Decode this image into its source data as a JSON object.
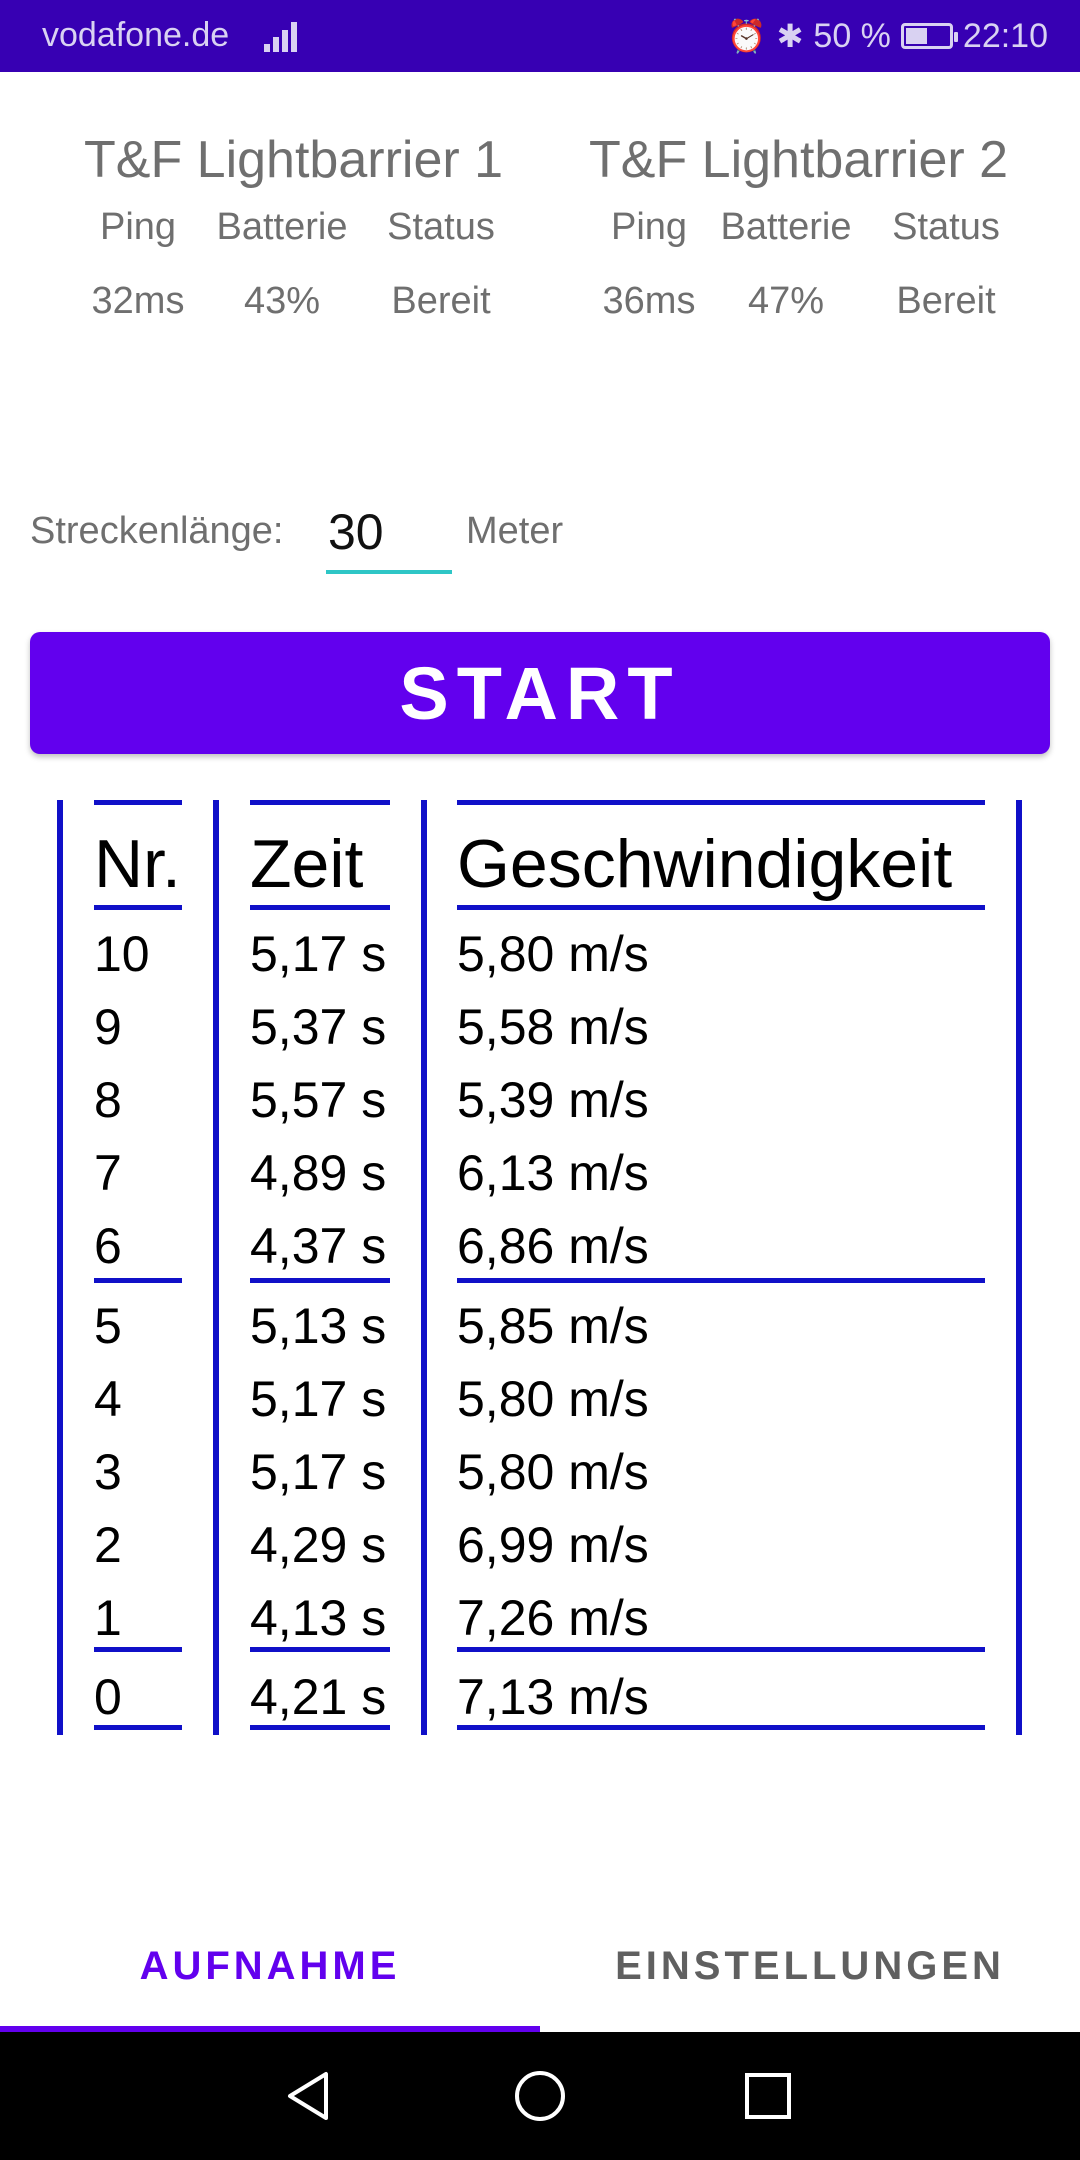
{
  "status_bar": {
    "carrier": "vodafone.de",
    "battery_text": "50 %",
    "battery_level": 0.5,
    "time": "22:10",
    "icons": [
      "signal-icon",
      "alarm-icon",
      "bluetooth-icon",
      "battery-icon"
    ]
  },
  "devices": [
    {
      "name": "T&F Lightbarrier 1",
      "labels": {
        "ping": "Ping",
        "battery": "Batterie",
        "status": "Status"
      },
      "values": {
        "ping": "32ms",
        "battery": "43%",
        "status": "Bereit"
      }
    },
    {
      "name": "T&F Lightbarrier 2",
      "labels": {
        "ping": "Ping",
        "battery": "Batterie",
        "status": "Status"
      },
      "values": {
        "ping": "36ms",
        "battery": "47%",
        "status": "Bereit"
      }
    }
  ],
  "distance": {
    "label": "Streckenlänge:",
    "value": "30",
    "unit": "Meter"
  },
  "start_button": {
    "label": "START"
  },
  "results": {
    "headers": {
      "nr": "Nr.",
      "time": "Zeit",
      "speed": "Geschwindigkeit"
    },
    "rows": [
      {
        "nr": "10",
        "time": "5,17 s",
        "speed": "5,80 m/s"
      },
      {
        "nr": "9",
        "time": "5,37 s",
        "speed": "5,58 m/s"
      },
      {
        "nr": "8",
        "time": "5,57 s",
        "speed": "5,39 m/s"
      },
      {
        "nr": "7",
        "time": "4,89 s",
        "speed": "6,13 m/s"
      },
      {
        "nr": "6",
        "time": "4,37 s",
        "speed": "6,86 m/s"
      },
      {
        "nr": "5",
        "time": "5,13 s",
        "speed": "5,85 m/s"
      },
      {
        "nr": "4",
        "time": "5,17 s",
        "speed": "5,80 m/s"
      },
      {
        "nr": "3",
        "time": "5,17 s",
        "speed": "5,80 m/s"
      },
      {
        "nr": "2",
        "time": "4,29 s",
        "speed": "6,99 m/s"
      },
      {
        "nr": "1",
        "time": "4,13 s",
        "speed": "7,26 m/s"
      },
      {
        "nr": "0",
        "time": "4,21 s",
        "speed": "7,13 m/s"
      }
    ]
  },
  "tabs": [
    {
      "label": "AUFNAHME",
      "active": true
    },
    {
      "label": "EINSTELLUNGEN",
      "active": false
    }
  ],
  "nav_bar": {
    "icons": [
      "back-icon",
      "home-icon",
      "recents-icon"
    ]
  },
  "colors": {
    "status_bar": "#3700B3",
    "accent": "#6200EE",
    "table_lines": "#1010C8",
    "input_underline": "#2EC6C6"
  }
}
